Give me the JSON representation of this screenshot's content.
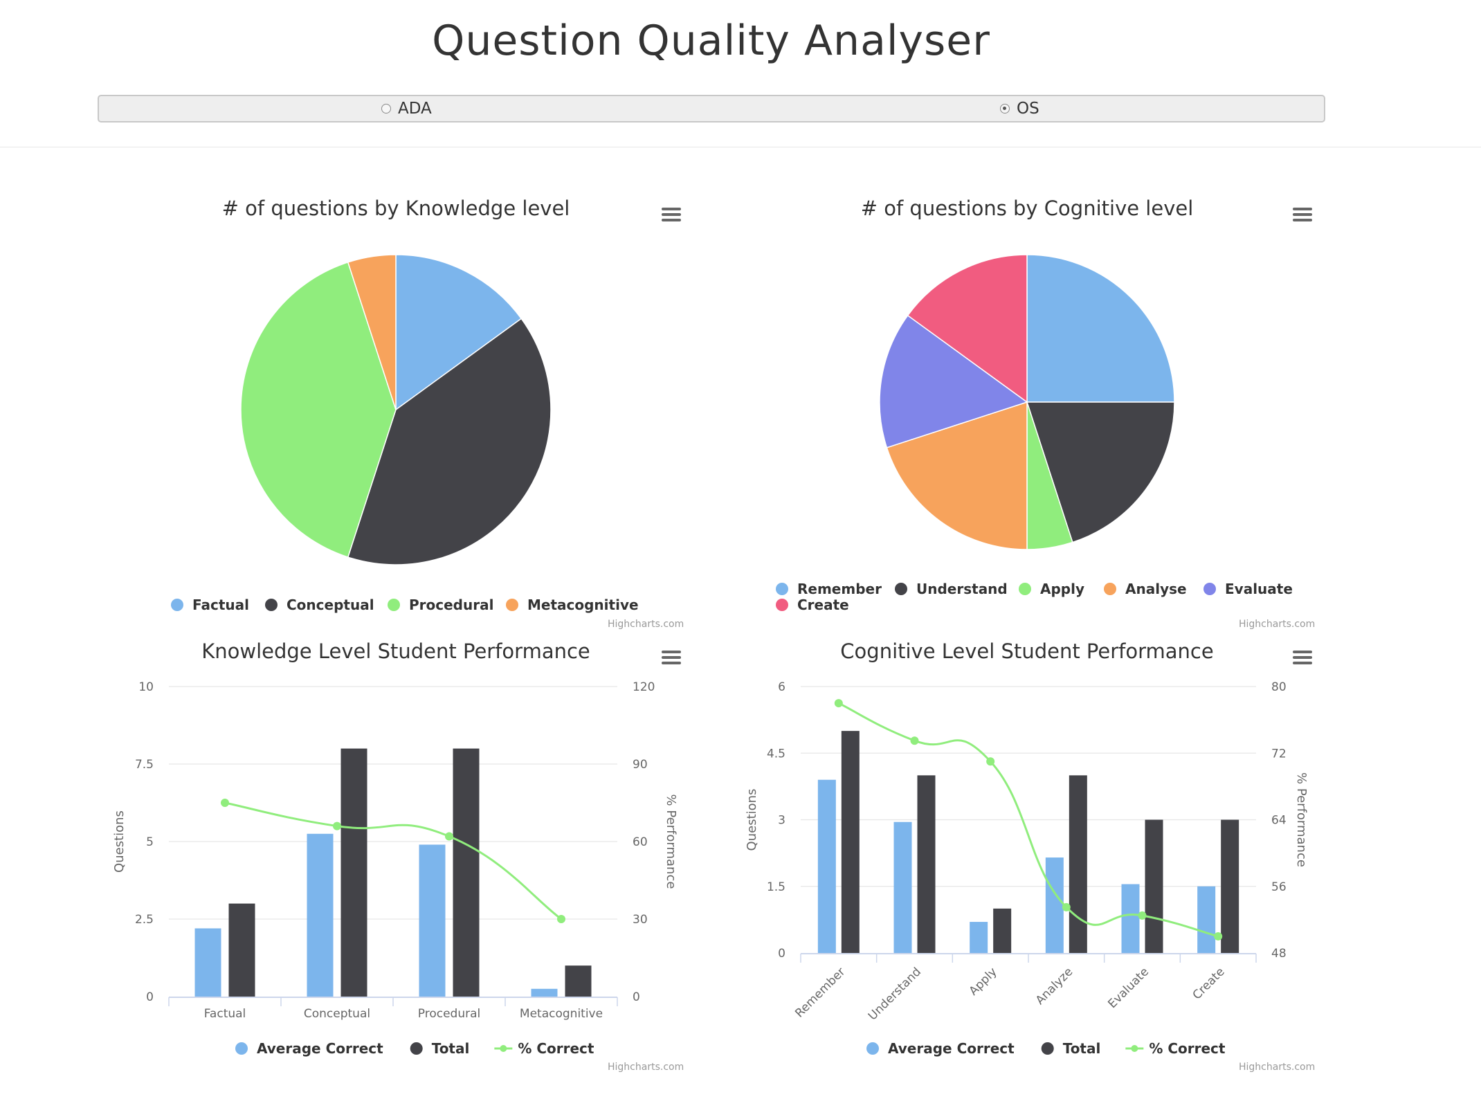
{
  "page": {
    "title": "Question Quality Analyser",
    "options": [
      {
        "label": "ADA",
        "checked": false
      },
      {
        "label": "OS",
        "checked": true
      }
    ]
  },
  "credits": "Highcharts.com",
  "chart_data": [
    {
      "type": "pie",
      "title": "# of questions by Knowledge level",
      "categories": [
        "Factual",
        "Conceptual",
        "Procedural",
        "Metacognitive"
      ],
      "values": [
        3,
        8,
        8,
        1
      ],
      "colors": [
        "#7cb5ec",
        "#434348",
        "#90ed7d",
        "#f7a35c"
      ],
      "legend": "bottom"
    },
    {
      "type": "pie",
      "title": "# of questions by Cognitive level",
      "categories": [
        "Remember",
        "Understand",
        "Apply",
        "Analyse",
        "Evaluate",
        "Create"
      ],
      "values": [
        5,
        4,
        1,
        4,
        3,
        3
      ],
      "colors": [
        "#7cb5ec",
        "#434348",
        "#90ed7d",
        "#f7a35c",
        "#8085e9",
        "#f15c80"
      ],
      "legend": "bottom"
    },
    {
      "type": "bar",
      "title": "Knowledge Level Student Performance",
      "categories": [
        "Factual",
        "Conceptual",
        "Procedural",
        "Metacognitive"
      ],
      "ylabel": "Questions",
      "y2label": "% Performance",
      "ylim": [
        0,
        10
      ],
      "y2lim": [
        0,
        120
      ],
      "yticks": [
        "0",
        "2.5",
        "5",
        "7.5",
        "10"
      ],
      "y2ticks": [
        "0",
        "30",
        "60",
        "90",
        "120"
      ],
      "series": [
        {
          "name": "Average Correct",
          "type": "column",
          "color": "#7cb5ec",
          "values": [
            2.2,
            5.25,
            4.9,
            0.25
          ]
        },
        {
          "name": "Total",
          "type": "column",
          "color": "#434348",
          "values": [
            3,
            8,
            8,
            1
          ]
        },
        {
          "name": "% Correct",
          "type": "spline",
          "axis": "secondary",
          "color": "#90ed7d",
          "values": [
            75,
            66,
            62,
            30
          ]
        }
      ],
      "legend": "bottom"
    },
    {
      "type": "bar",
      "title": "Cognitive Level Student Performance",
      "categories": [
        "Remember",
        "Understand",
        "Apply",
        "Analyze",
        "Evaluate",
        "Create"
      ],
      "ylabel": "Questions",
      "y2label": "% Performance",
      "ylim": [
        0,
        6
      ],
      "y2lim": [
        48,
        80
      ],
      "yticks": [
        "0",
        "1.5",
        "3",
        "4.5",
        "6"
      ],
      "y2ticks": [
        "48",
        "56",
        "64",
        "72",
        "80"
      ],
      "series": [
        {
          "name": "Average Correct",
          "type": "column",
          "color": "#7cb5ec",
          "values": [
            3.9,
            2.95,
            0.7,
            2.15,
            1.55,
            1.5
          ]
        },
        {
          "name": "Total",
          "type": "column",
          "color": "#434348",
          "values": [
            5,
            4,
            1,
            4,
            3,
            3
          ]
        },
        {
          "name": "% Correct",
          "type": "spline",
          "axis": "secondary",
          "color": "#90ed7d",
          "values": [
            78,
            73.5,
            71,
            53.5,
            52.5,
            50
          ]
        }
      ],
      "legend": "bottom"
    }
  ]
}
